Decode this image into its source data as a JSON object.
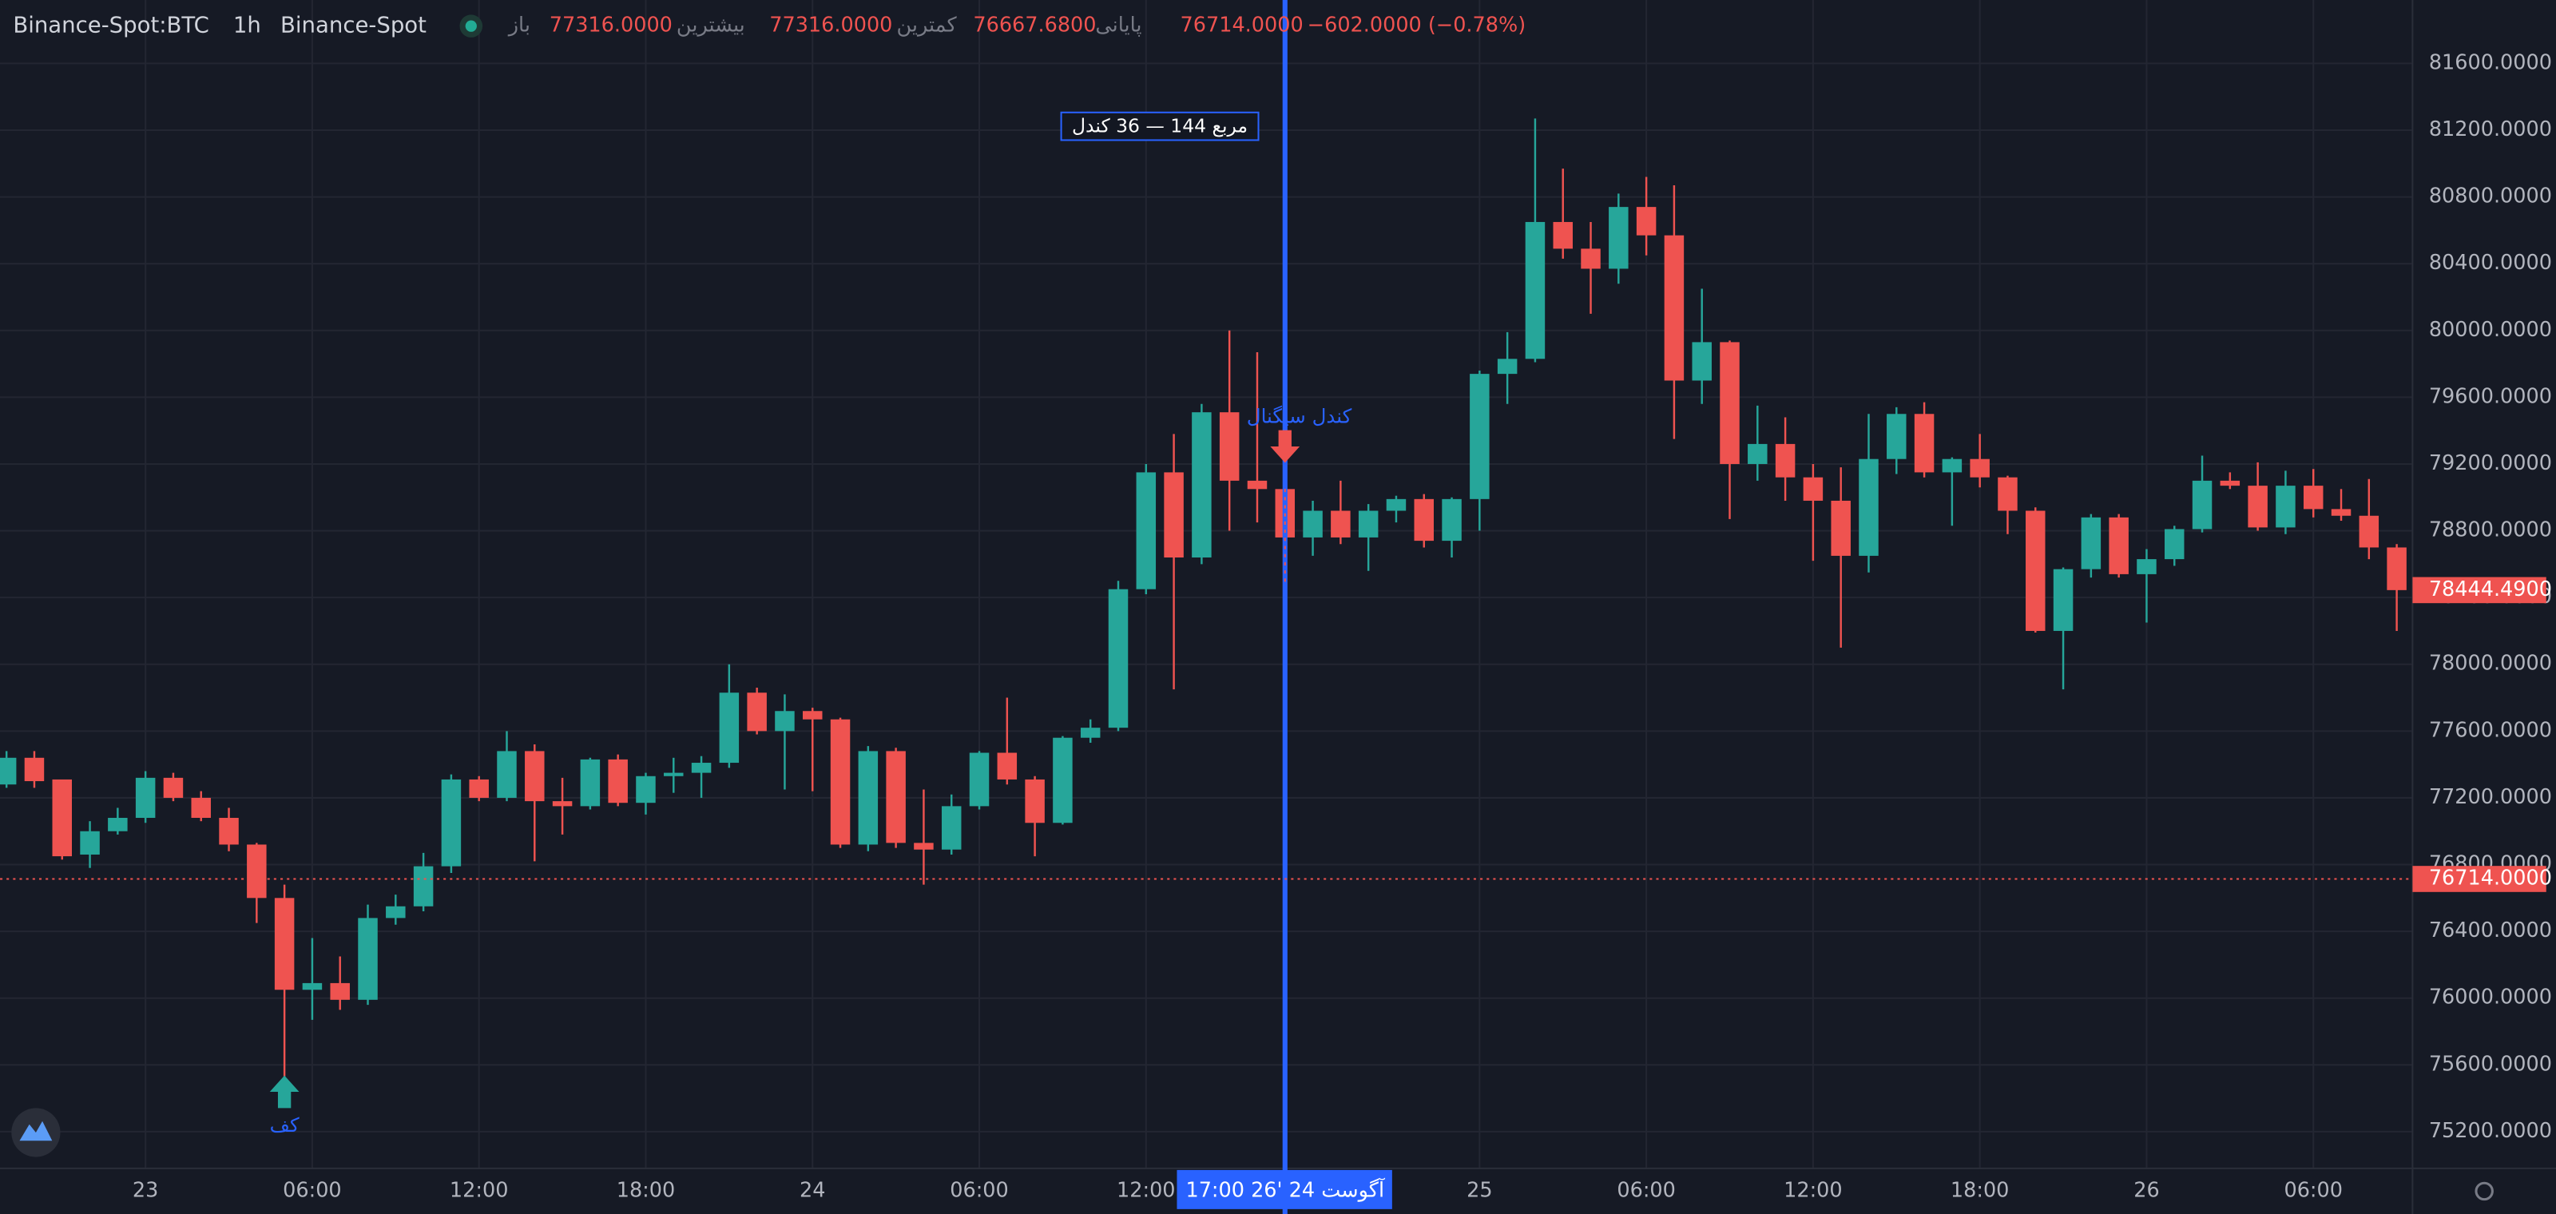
{
  "header": {
    "symbol": "Binance-Spot:BTC",
    "interval": "1h",
    "exchange": "Binance-Spot",
    "open_label": "باز",
    "open": "77316.0000",
    "high_label": "بیشترین",
    "high": "77316.0000",
    "low_label": "کمترین",
    "low": "76667.6800",
    "close_label": "پایانی",
    "close": "76714.0000",
    "change": "−602.0000 (−0.78%)"
  },
  "chart_data": {
    "type": "candlestick",
    "categories": [
      null,
      null,
      null,
      null,
      null,
      "23",
      null,
      null,
      null,
      null,
      null,
      "06:00",
      null,
      null,
      null,
      null,
      null,
      "12:00",
      null,
      null,
      null,
      null,
      null,
      "18:00",
      null,
      null,
      null,
      null,
      null,
      "24",
      null,
      null,
      null,
      null,
      null,
      "06:00",
      null,
      null,
      null,
      null,
      null,
      "12:00",
      null,
      null,
      null,
      null,
      null,
      null,
      null,
      null,
      null,
      null,
      null,
      "25",
      null,
      null,
      null,
      null,
      null,
      "06:00",
      null,
      null,
      null,
      null,
      null,
      "12:00",
      null,
      null,
      null,
      null,
      null,
      "18:00",
      null,
      null,
      null,
      null,
      null,
      "26",
      null,
      null,
      null,
      null,
      null,
      "06:00",
      null,
      null,
      null
    ],
    "open": [
      77280,
      77440,
      77310,
      76860,
      77000,
      77080,
      77320,
      77200,
      77080,
      76920,
      76600,
      76050,
      76090,
      75990,
      76480,
      76550,
      76790,
      77310,
      77200,
      77480,
      77180,
      77150,
      77430,
      77170,
      77330,
      77350,
      77410,
      77830,
      77600,
      77720,
      77670,
      76920,
      77480,
      76930,
      76890,
      77150,
      77470,
      77310,
      77050,
      77560,
      77620,
      78450,
      79150,
      78640,
      79510,
      79100,
      79050,
      78760,
      78920,
      78760,
      78920,
      78990,
      78740,
      78990,
      79740,
      79830,
      80650,
      80490,
      80370,
      80740,
      80570,
      79700,
      79930,
      79200,
      79320,
      79120,
      78980,
      78650,
      79230,
      79500,
      79150,
      79230,
      79120,
      78920,
      78200,
      78570,
      78880,
      78540,
      78630,
      78810,
      79100,
      79070,
      78820,
      79070,
      78930,
      78890,
      78700
    ],
    "high": [
      77480,
      77480,
      77310,
      77060,
      77140,
      77360,
      77350,
      77240,
      77140,
      76930,
      76680,
      76360,
      76250,
      76560,
      76620,
      76870,
      77340,
      77330,
      77600,
      77520,
      77320,
      77440,
      77460,
      77350,
      77440,
      77450,
      78000,
      77860,
      77820,
      77740,
      77680,
      77510,
      77500,
      77250,
      77220,
      77480,
      77800,
      77330,
      77570,
      77670,
      78500,
      79200,
      79380,
      79560,
      80000,
      79870,
      79300,
      78980,
      79100,
      78960,
      79010,
      79020,
      79000,
      79760,
      79990,
      81270,
      80970,
      80650,
      80820,
      80920,
      80870,
      80250,
      79940,
      79550,
      79480,
      79200,
      79180,
      79500,
      79540,
      79570,
      79240,
      79380,
      79130,
      78940,
      78580,
      78900,
      78900,
      78690,
      78830,
      79250,
      79150,
      79210,
      79160,
      79170,
      79050,
      79110,
      78720
    ],
    "low": [
      77260,
      77260,
      76830,
      76780,
      76980,
      77050,
      77180,
      77060,
      76880,
      76450,
      75530,
      75870,
      75930,
      75960,
      76440,
      76520,
      76750,
      77180,
      77180,
      76820,
      76980,
      77130,
      77150,
      77100,
      77230,
      77200,
      77380,
      77580,
      77250,
      77240,
      76900,
      76880,
      76900,
      76680,
      76860,
      77130,
      77280,
      76850,
      77040,
      77530,
      77600,
      78420,
      77850,
      78600,
      78800,
      78850,
      78420,
      78650,
      78720,
      78560,
      78850,
      78700,
      78640,
      78800,
      79560,
      79810,
      80430,
      80100,
      80280,
      80450,
      79350,
      79560,
      78870,
      79100,
      78980,
      78620,
      78100,
      78550,
      79140,
      79120,
      78830,
      79060,
      78780,
      78190,
      77850,
      78520,
      78520,
      78250,
      78590,
      78790,
      79050,
      78800,
      78780,
      78880,
      78860,
      78630,
      78200
    ],
    "close": [
      77440,
      77300,
      76850,
      77000,
      77080,
      77320,
      77200,
      77080,
      76920,
      76600,
      76050,
      76090,
      75990,
      76480,
      76550,
      76790,
      77310,
      77200,
      77480,
      77180,
      77150,
      77430,
      77170,
      77330,
      77350,
      77410,
      77830,
      77600,
      77720,
      77670,
      76920,
      77480,
      76930,
      76890,
      77150,
      77470,
      77310,
      77050,
      77560,
      77620,
      78450,
      79150,
      78640,
      79510,
      79100,
      79050,
      78760,
      78920,
      78760,
      78920,
      78990,
      78740,
      78990,
      79740,
      79830,
      80650,
      80490,
      80370,
      80740,
      80570,
      79700,
      79930,
      79200,
      79320,
      79120,
      78980,
      78650,
      79230,
      79500,
      79150,
      79230,
      79120,
      78920,
      78200,
      78570,
      78880,
      78540,
      78630,
      78810,
      79100,
      79070,
      78820,
      79070,
      78930,
      78890,
      78700,
      78444.49
    ],
    "up_color": "#26a69a",
    "down_color": "#ef5350",
    "ylim": [
      74980,
      81980
    ],
    "yticks": [
      {
        "value": 75200,
        "label": "75200.0000"
      },
      {
        "value": 75600,
        "label": "75600.0000"
      },
      {
        "value": 76000,
        "label": "76000.0000"
      },
      {
        "value": 76400,
        "label": "76400.0000"
      },
      {
        "value": 76800,
        "label": "76800.0000"
      },
      {
        "value": 77200,
        "label": "77200.0000"
      },
      {
        "value": 77600,
        "label": "77600.0000"
      },
      {
        "value": 78000,
        "label": "78000.0000"
      },
      {
        "value": 78400,
        "label": "78400.0000"
      },
      {
        "value": 78800,
        "label": "78800.0000"
      },
      {
        "value": 79200,
        "label": "79200.0000"
      },
      {
        "value": 79600,
        "label": "79600.0000"
      },
      {
        "value": 80000,
        "label": "80000.0000"
      },
      {
        "value": 80400,
        "label": "80400.0000"
      },
      {
        "value": 80800,
        "label": "80800.0000"
      },
      {
        "value": 81200,
        "label": "81200.0000"
      },
      {
        "value": 81600,
        "label": "81600.0000"
      }
    ],
    "grid": true,
    "price_lines": [
      {
        "value": 78444.49,
        "label": "78444.4900",
        "color": "#ef5350",
        "line": false
      },
      {
        "value": 76714,
        "label": "76714.0000",
        "color": "#ef5350",
        "line": true
      }
    ],
    "crosshair_label": "17:00  26' آگوست 24",
    "annotations": {
      "box": "مربع 144 — 36 کندل",
      "signal": "کندل سیگنال",
      "bottom": "کف"
    }
  }
}
